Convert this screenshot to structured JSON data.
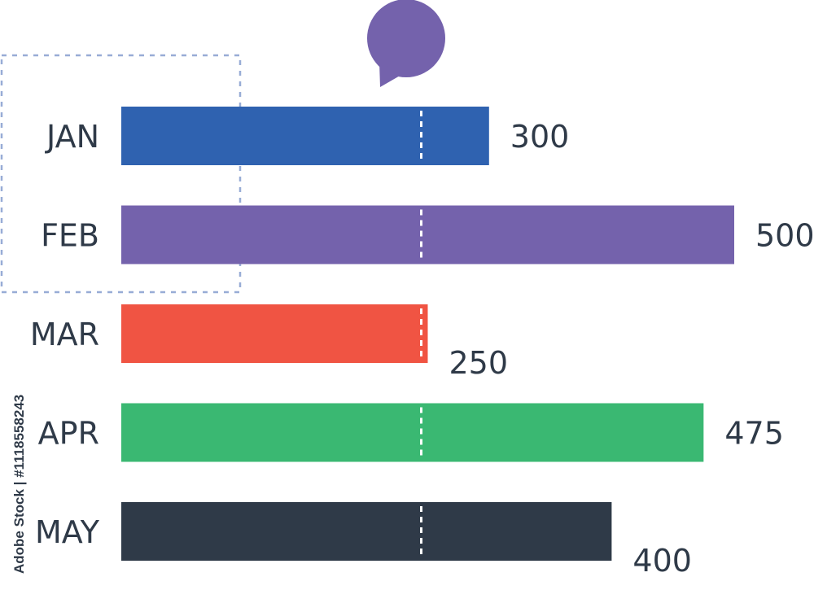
{
  "chart_data": {
    "type": "bar",
    "orientation": "horizontal",
    "categories": [
      "JAN",
      "FEB",
      "MAR",
      "APR",
      "MAY"
    ],
    "values": [
      300,
      500,
      250,
      475,
      400
    ],
    "data_labels": [
      "300",
      "500",
      "250",
      "475",
      "400"
    ],
    "colors": [
      "#2f62b0",
      "#7462ac",
      "#f05443",
      "#3ab872",
      "#2f3a48"
    ],
    "xlim": [
      0,
      500
    ],
    "reference_value": 250,
    "grid": false,
    "legend": "none",
    "title": "",
    "xlabel": "",
    "ylabel": ""
  },
  "annotations": {
    "bubble_color": "#7462ac",
    "highlight_box_color": "#98acd6",
    "side_stamp": "Adobe Stock | #1118558243"
  }
}
